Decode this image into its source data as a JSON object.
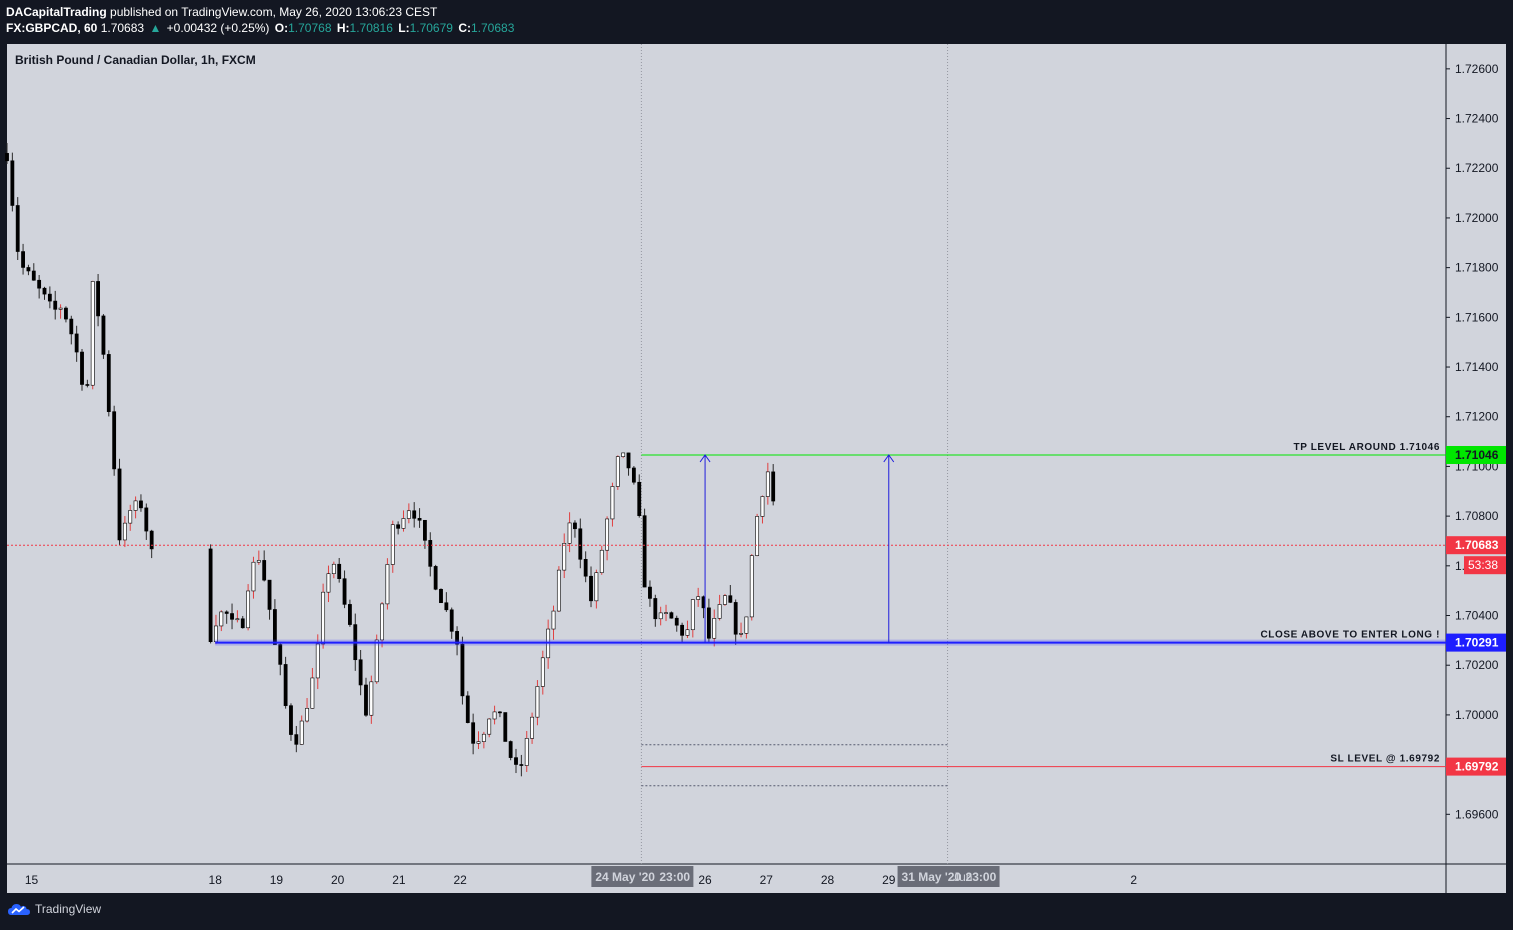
{
  "header": {
    "publisher": "DACapitalTrading",
    "published_text": "published on TradingView.com, May 26, 2020 13:06:23 CEST",
    "symbol": "FX:GBPCAD, 60",
    "last": "1.70683",
    "change": "+0.00432 (+0.25%)",
    "o_label": "O:",
    "o": "1.70768",
    "h_label": "H:",
    "h": "1.70816",
    "l_label": "L:",
    "l": "1.70679",
    "c_label": "C:",
    "c": "1.70683"
  },
  "footer": {
    "brand": "TradingView"
  },
  "colors": {
    "background": "#131722",
    "plot_bg": "#d1d4dc",
    "bull": "#ffffff",
    "bear": "#000000",
    "tp": "#00e600",
    "entry": "#1e1eff",
    "sl": "#f23645",
    "current": "#f23645",
    "arrow": "#1e1edc"
  },
  "chart_data": {
    "type": "candlestick",
    "title": "British Pound / Canadian Dollar, 1h, FXCM",
    "ylim": [
      1.694,
      1.727
    ],
    "y_ticks": [
      "1.72600",
      "1.72400",
      "1.72200",
      "1.72000",
      "1.71800",
      "1.71600",
      "1.71400",
      "1.71200",
      "1.71000",
      "1.70800",
      "1.70600",
      "1.70400",
      "1.70200",
      "1.70000",
      "1.69600"
    ],
    "x_ticks": [
      "15",
      "18",
      "19",
      "20",
      "21",
      "22",
      "24 May '20",
      "23:00",
      "26",
      "27",
      "28",
      "29",
      "31 May '20",
      "Jun",
      "23:00",
      "2"
    ],
    "x_range_days": [
      14.6,
      38.1
    ],
    "grid": false,
    "current_price": "1.70683",
    "countdown": "53:38",
    "levels": [
      {
        "name": "tp",
        "value": 1.71046,
        "label": "TP LEVEL AROUND 1.71046",
        "badge": "1.71046"
      },
      {
        "name": "entry",
        "value": 1.70291,
        "label": "CLOSE ABOVE TO ENTER LONG !",
        "badge": "1.70291"
      },
      {
        "name": "sl",
        "value": 1.69792,
        "label": "SL LEVEL @ 1.69792",
        "badge": "1.69792"
      }
    ],
    "zone_dotted": [
      1.6988,
      1.69715
    ],
    "vertical_markers_days": [
      24.96,
      29.96
    ],
    "arrows": [
      {
        "day": 26.0,
        "from": 1.70291,
        "to": 1.71046
      },
      {
        "day": 29.0,
        "from": 1.70291,
        "to": 1.71046
      }
    ],
    "close_path": [
      [
        14.6,
        1.7226
      ],
      [
        14.8,
        1.7182
      ],
      [
        15.0,
        1.7175
      ],
      [
        15.2,
        1.7168
      ],
      [
        15.35,
        1.7162
      ],
      [
        15.5,
        1.7165
      ],
      [
        15.7,
        1.715
      ],
      [
        15.9,
        1.7127
      ],
      [
        16.0,
        1.7172
      ],
      [
        16.1,
        1.716
      ],
      [
        16.2,
        1.714
      ],
      [
        16.35,
        1.71
      ],
      [
        16.45,
        1.7068
      ],
      [
        16.6,
        1.7082
      ],
      [
        16.8,
        1.7085
      ],
      [
        16.95,
        1.7065
      ],
      [
        17.9,
        1.703
      ],
      [
        18.0,
        1.7038
      ],
      [
        18.15,
        1.7042
      ],
      [
        18.3,
        1.7035
      ],
      [
        18.45,
        1.7038
      ],
      [
        18.55,
        1.7055
      ],
      [
        18.7,
        1.7065
      ],
      [
        18.85,
        1.705
      ],
      [
        18.95,
        1.703
      ],
      [
        19.05,
        1.702
      ],
      [
        19.2,
        1.6995
      ],
      [
        19.35,
        1.699
      ],
      [
        19.5,
        1.7005
      ],
      [
        19.65,
        1.702
      ],
      [
        19.75,
        1.7045
      ],
      [
        19.9,
        1.7065
      ],
      [
        20.05,
        1.705
      ],
      [
        20.2,
        1.7035
      ],
      [
        20.35,
        1.7015
      ],
      [
        20.45,
        1.7
      ],
      [
        20.6,
        1.702
      ],
      [
        20.75,
        1.705
      ],
      [
        20.9,
        1.7075
      ],
      [
        21.05,
        1.708
      ],
      [
        21.2,
        1.7085
      ],
      [
        21.35,
        1.7075
      ],
      [
        21.5,
        1.706
      ],
      [
        21.65,
        1.705
      ],
      [
        21.8,
        1.704
      ],
      [
        21.95,
        1.703
      ],
      [
        22.05,
        1.7005
      ],
      [
        22.2,
        1.699
      ],
      [
        22.35,
        1.6992
      ],
      [
        22.5,
        1.7002
      ],
      [
        22.65,
        1.6998
      ],
      [
        22.8,
        1.6985
      ],
      [
        22.95,
        1.6975
      ],
      [
        23.1,
        1.699
      ],
      [
        23.25,
        1.701
      ],
      [
        23.4,
        1.7028
      ],
      [
        23.55,
        1.7045
      ],
      [
        23.7,
        1.707
      ],
      [
        23.85,
        1.708
      ],
      [
        24.0,
        1.706
      ],
      [
        24.15,
        1.7045
      ],
      [
        24.3,
        1.7065
      ],
      [
        24.45,
        1.7085
      ],
      [
        24.6,
        1.7105
      ],
      [
        24.75,
        1.71
      ],
      [
        24.9,
        1.7085
      ],
      [
        25.0,
        1.7055
      ],
      [
        25.1,
        1.7045
      ],
      [
        25.25,
        1.7038
      ],
      [
        25.4,
        1.704
      ],
      [
        25.55,
        1.7035
      ],
      [
        25.7,
        1.7032
      ],
      [
        25.85,
        1.705
      ],
      [
        25.95,
        1.7045
      ],
      [
        26.05,
        1.703
      ],
      [
        26.2,
        1.704
      ],
      [
        26.35,
        1.7048
      ],
      [
        26.5,
        1.7035
      ],
      [
        26.6,
        1.703
      ],
      [
        26.7,
        1.7045
      ],
      [
        26.8,
        1.7075
      ],
      [
        26.9,
        1.7085
      ],
      [
        27.0,
        1.71
      ],
      [
        27.1,
        1.7092
      ],
      [
        27.15,
        1.7068
      ]
    ]
  }
}
